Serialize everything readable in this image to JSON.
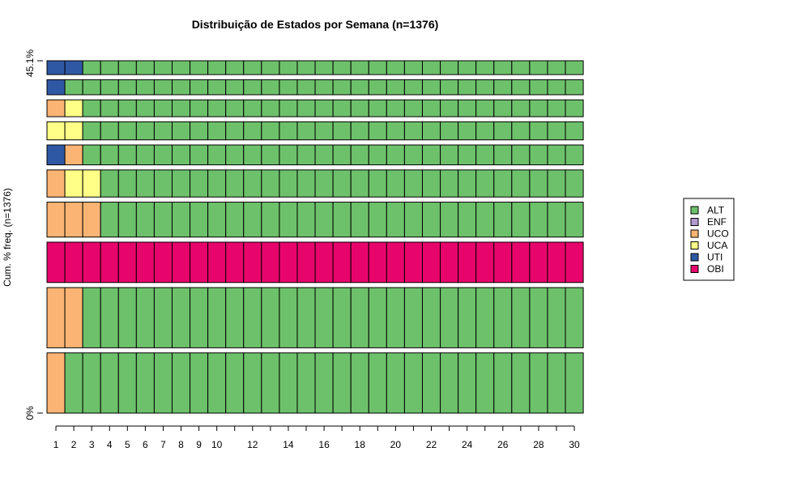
{
  "chart_data": {
    "type": "bar",
    "title": "Distribuição de Estados por Semana (n=1376)",
    "xlabel": "",
    "ylabel": "Cum. % freq. (n=1376)",
    "y_tick_labels": [
      "0%",
      "45.1%"
    ],
    "ylim": [
      0,
      45.1
    ],
    "x": [
      1,
      2,
      3,
      4,
      5,
      6,
      7,
      8,
      9,
      10,
      11,
      12,
      13,
      14,
      15,
      16,
      17,
      18,
      19,
      20,
      21,
      22,
      23,
      24,
      25,
      26,
      27,
      28,
      29,
      30
    ],
    "x_tick_labels": [
      "1",
      "2",
      "3",
      "4",
      "5",
      "6",
      "7",
      "8",
      "9",
      "10",
      "12",
      "14",
      "16",
      "18",
      "20",
      "22",
      "24",
      "26",
      "28",
      "30"
    ],
    "legend": {
      "position": "right",
      "items": [
        {
          "label": "ALT",
          "color": "#6DC16B"
        },
        {
          "label": "ENF",
          "color": "#B39BD0"
        },
        {
          "label": "UCO",
          "color": "#FBB474"
        },
        {
          "label": "UCA",
          "color": "#FFFF88"
        },
        {
          "label": "UTI",
          "color": "#2F58A4"
        },
        {
          "label": "OBI",
          "color": "#E8056B"
        }
      ]
    },
    "sequences": [
      {
        "weight": 1.0,
        "states": [
          "UCO",
          "ALT",
          "ALT",
          "ALT",
          "ALT",
          "ALT",
          "ALT",
          "ALT",
          "ALT",
          "ALT",
          "ALT",
          "ALT",
          "ALT",
          "ALT",
          "ALT",
          "ALT",
          "ALT",
          "ALT",
          "ALT",
          "ALT",
          "ALT",
          "ALT",
          "ALT",
          "ALT",
          "ALT",
          "ALT",
          "ALT",
          "ALT",
          "ALT",
          "ALT"
        ]
      },
      {
        "weight": 1.0,
        "states": [
          "UCO",
          "UCO",
          "ALT",
          "ALT",
          "ALT",
          "ALT",
          "ALT",
          "ALT",
          "ALT",
          "ALT",
          "ALT",
          "ALT",
          "ALT",
          "ALT",
          "ALT",
          "ALT",
          "ALT",
          "ALT",
          "ALT",
          "ALT",
          "ALT",
          "ALT",
          "ALT",
          "ALT",
          "ALT",
          "ALT",
          "ALT",
          "ALT",
          "ALT",
          "ALT"
        ]
      },
      {
        "weight": 0.67,
        "states": [
          "OBI",
          "OBI",
          "OBI",
          "OBI",
          "OBI",
          "OBI",
          "OBI",
          "OBI",
          "OBI",
          "OBI",
          "OBI",
          "OBI",
          "OBI",
          "OBI",
          "OBI",
          "OBI",
          "OBI",
          "OBI",
          "OBI",
          "OBI",
          "OBI",
          "OBI",
          "OBI",
          "OBI",
          "OBI",
          "OBI",
          "OBI",
          "OBI",
          "OBI",
          "OBI"
        ]
      },
      {
        "weight": 0.58,
        "states": [
          "UCO",
          "UCO",
          "UCO",
          "ALT",
          "ALT",
          "ALT",
          "ALT",
          "ALT",
          "ALT",
          "ALT",
          "ALT",
          "ALT",
          "ALT",
          "ALT",
          "ALT",
          "ALT",
          "ALT",
          "ALT",
          "ALT",
          "ALT",
          "ALT",
          "ALT",
          "ALT",
          "ALT",
          "ALT",
          "ALT",
          "ALT",
          "ALT",
          "ALT",
          "ALT"
        ]
      },
      {
        "weight": 0.45,
        "states": [
          "UCO",
          "UCA",
          "UCA",
          "ALT",
          "ALT",
          "ALT",
          "ALT",
          "ALT",
          "ALT",
          "ALT",
          "ALT",
          "ALT",
          "ALT",
          "ALT",
          "ALT",
          "ALT",
          "ALT",
          "ALT",
          "ALT",
          "ALT",
          "ALT",
          "ALT",
          "ALT",
          "ALT",
          "ALT",
          "ALT",
          "ALT",
          "ALT",
          "ALT",
          "ALT"
        ]
      },
      {
        "weight": 0.33,
        "states": [
          "UTI",
          "UCO",
          "ALT",
          "ALT",
          "ALT",
          "ALT",
          "ALT",
          "ALT",
          "ALT",
          "ALT",
          "ALT",
          "ALT",
          "ALT",
          "ALT",
          "ALT",
          "ALT",
          "ALT",
          "ALT",
          "ALT",
          "ALT",
          "ALT",
          "ALT",
          "ALT",
          "ALT",
          "ALT",
          "ALT",
          "ALT",
          "ALT",
          "ALT",
          "ALT"
        ]
      },
      {
        "weight": 0.3,
        "states": [
          "UCA",
          "UCA",
          "ALT",
          "ALT",
          "ALT",
          "ALT",
          "ALT",
          "ALT",
          "ALT",
          "ALT",
          "ALT",
          "ALT",
          "ALT",
          "ALT",
          "ALT",
          "ALT",
          "ALT",
          "ALT",
          "ALT",
          "ALT",
          "ALT",
          "ALT",
          "ALT",
          "ALT",
          "ALT",
          "ALT",
          "ALT",
          "ALT",
          "ALT",
          "ALT"
        ]
      },
      {
        "weight": 0.28,
        "states": [
          "UCO",
          "UCA",
          "ALT",
          "ALT",
          "ALT",
          "ALT",
          "ALT",
          "ALT",
          "ALT",
          "ALT",
          "ALT",
          "ALT",
          "ALT",
          "ALT",
          "ALT",
          "ALT",
          "ALT",
          "ALT",
          "ALT",
          "ALT",
          "ALT",
          "ALT",
          "ALT",
          "ALT",
          "ALT",
          "ALT",
          "ALT",
          "ALT",
          "ALT",
          "ALT"
        ]
      },
      {
        "weight": 0.25,
        "states": [
          "UTI",
          "ALT",
          "ALT",
          "ALT",
          "ALT",
          "ALT",
          "ALT",
          "ALT",
          "ALT",
          "ALT",
          "ALT",
          "ALT",
          "ALT",
          "ALT",
          "ALT",
          "ALT",
          "ALT",
          "ALT",
          "ALT",
          "ALT",
          "ALT",
          "ALT",
          "ALT",
          "ALT",
          "ALT",
          "ALT",
          "ALT",
          "ALT",
          "ALT",
          "ALT"
        ]
      },
      {
        "weight": 0.23,
        "states": [
          "UTI",
          "UTI",
          "ALT",
          "ALT",
          "ALT",
          "ALT",
          "ALT",
          "ALT",
          "ALT",
          "ALT",
          "ALT",
          "ALT",
          "ALT",
          "ALT",
          "ALT",
          "ALT",
          "ALT",
          "ALT",
          "ALT",
          "ALT",
          "ALT",
          "ALT",
          "ALT",
          "ALT",
          "ALT",
          "ALT",
          "ALT",
          "ALT",
          "ALT",
          "ALT"
        ]
      }
    ]
  }
}
